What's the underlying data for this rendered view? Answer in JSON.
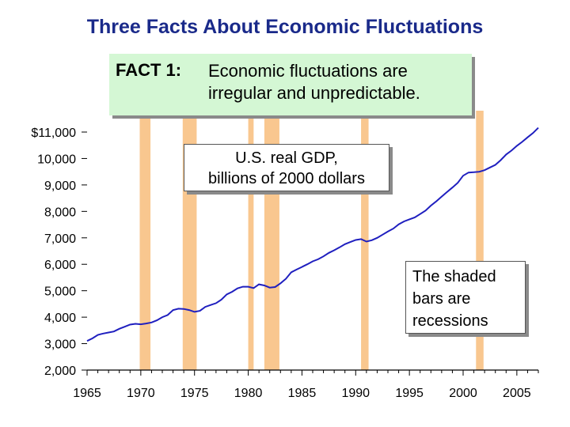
{
  "slide_title": "Three Facts About Economic Fluctuations",
  "fact_box": {
    "label": "FACT 1:",
    "text_lines": [
      "Economic fluctuations are",
      "irregular and unpredictable."
    ]
  },
  "gdp_box": {
    "lines": [
      "U.S. real GDP,",
      "billions of 2000 dollars"
    ]
  },
  "shade_box": {
    "lines": [
      "The shaded",
      "bars are",
      "recessions"
    ]
  },
  "colors": {
    "line": "#1f1fbf",
    "recession": "#f9c78f",
    "title": "#1a2a8a",
    "fact_bg": "#d4f7d4"
  },
  "chart_data": {
    "type": "line",
    "title": "",
    "xlabel": "",
    "ylabel": "",
    "xlim": [
      1965,
      2007
    ],
    "ylim": [
      2000,
      11000
    ],
    "x_ticks": [
      1965,
      1970,
      1975,
      1980,
      1985,
      1990,
      1995,
      2000,
      2005
    ],
    "y_ticks": [
      2000,
      3000,
      4000,
      5000,
      6000,
      7000,
      8000,
      9000,
      10000,
      11000
    ],
    "y_tick_labels": [
      "2,000",
      "3,000",
      "4,000",
      "5,000",
      "6,000",
      "7,000",
      "8,000",
      "9,000",
      "10,000",
      "$11,000"
    ],
    "recessions": [
      [
        1969.9,
        1970.9
      ],
      [
        1973.9,
        1975.2
      ],
      [
        1980.0,
        1980.5
      ],
      [
        1981.5,
        1982.9
      ],
      [
        1990.5,
        1991.2
      ],
      [
        2001.2,
        2001.9
      ]
    ],
    "series": [
      {
        "x": [
          1965.0,
          1965.5,
          1966.0,
          1966.5,
          1967.0,
          1967.5,
          1968.0,
          1968.5,
          1969.0,
          1969.5,
          1970.0,
          1970.5,
          1971.0,
          1971.5,
          1972.0,
          1972.5,
          1973.0,
          1973.5,
          1974.0,
          1974.5,
          1975.0,
          1975.5,
          1976.0,
          1976.5,
          1977.0,
          1977.5,
          1978.0,
          1978.5,
          1979.0,
          1979.5,
          1980.0,
          1980.5,
          1981.0,
          1981.5,
          1982.0,
          1982.5,
          1983.0,
          1983.5,
          1984.0,
          1984.5,
          1985.0,
          1985.5,
          1986.0,
          1986.5,
          1987.0,
          1987.5,
          1988.0,
          1988.5,
          1989.0,
          1989.5,
          1990.0,
          1990.5,
          1991.0,
          1991.5,
          1992.0,
          1992.5,
          1993.0,
          1993.5,
          1994.0,
          1994.5,
          1995.0,
          1995.5,
          1996.0,
          1996.5,
          1997.0,
          1997.5,
          1998.0,
          1998.5,
          1999.0,
          1999.5,
          2000.0,
          2000.5,
          2001.0,
          2001.5,
          2002.0,
          2002.5,
          2003.0,
          2003.5,
          2004.0,
          2004.5,
          2005.0,
          2005.5,
          2006.0,
          2006.5,
          2007.0
        ],
        "values": [
          3100,
          3200,
          3330,
          3380,
          3420,
          3460,
          3560,
          3640,
          3720,
          3750,
          3730,
          3760,
          3800,
          3880,
          4000,
          4080,
          4270,
          4320,
          4310,
          4270,
          4200,
          4240,
          4390,
          4460,
          4530,
          4660,
          4860,
          4960,
          5090,
          5150,
          5150,
          5100,
          5240,
          5200,
          5120,
          5140,
          5280,
          5450,
          5700,
          5800,
          5900,
          6000,
          6110,
          6190,
          6300,
          6430,
          6530,
          6640,
          6760,
          6840,
          6920,
          6950,
          6860,
          6910,
          7000,
          7120,
          7240,
          7350,
          7510,
          7620,
          7700,
          7770,
          7900,
          8030,
          8220,
          8380,
          8560,
          8730,
          8900,
          9080,
          9350,
          9470,
          9480,
          9500,
          9560,
          9660,
          9760,
          9940,
          10150,
          10300,
          10480,
          10630,
          10800,
          10960,
          11160
        ]
      }
    ]
  }
}
